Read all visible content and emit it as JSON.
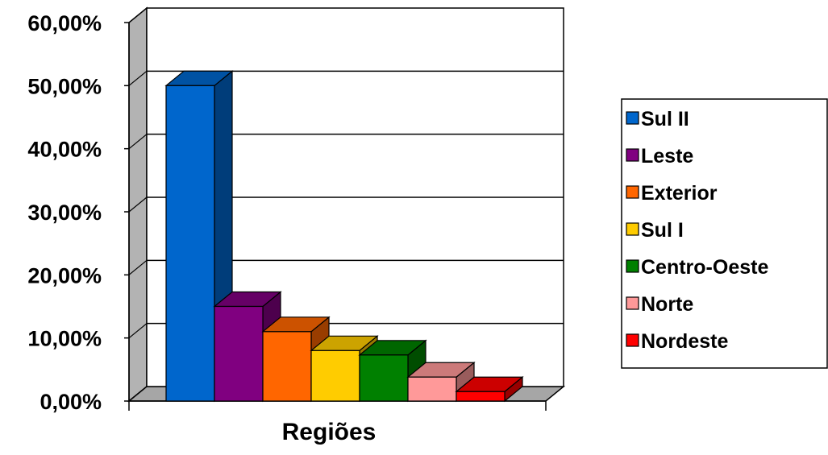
{
  "chart_data": {
    "type": "bar",
    "title": "",
    "xlabel": "Regiões",
    "ylabel": "",
    "ylim": [
      0,
      60
    ],
    "y_tick_labels": [
      "0,00%",
      "10,00%",
      "20,00%",
      "30,00%",
      "40,00%",
      "50,00%",
      "60,00%"
    ],
    "y_ticks": [
      0,
      10,
      20,
      30,
      40,
      50,
      60
    ],
    "grid": true,
    "three_d": true,
    "legend_position": "right",
    "series": [
      {
        "name": "Sul II",
        "value": 50.0,
        "color": "#0066CC"
      },
      {
        "name": "Leste",
        "value": 15.0,
        "color": "#800080"
      },
      {
        "name": "Exterior",
        "value": 11.0,
        "color": "#FF6600"
      },
      {
        "name": "Sul I",
        "value": 8.0,
        "color": "#FFCC00"
      },
      {
        "name": "Centro-Oeste",
        "value": 7.3,
        "color": "#008000"
      },
      {
        "name": "Norte",
        "value": 3.8,
        "color": "#FF9999"
      },
      {
        "name": "Nordeste",
        "value": 1.5,
        "color": "#FF0000"
      }
    ]
  }
}
